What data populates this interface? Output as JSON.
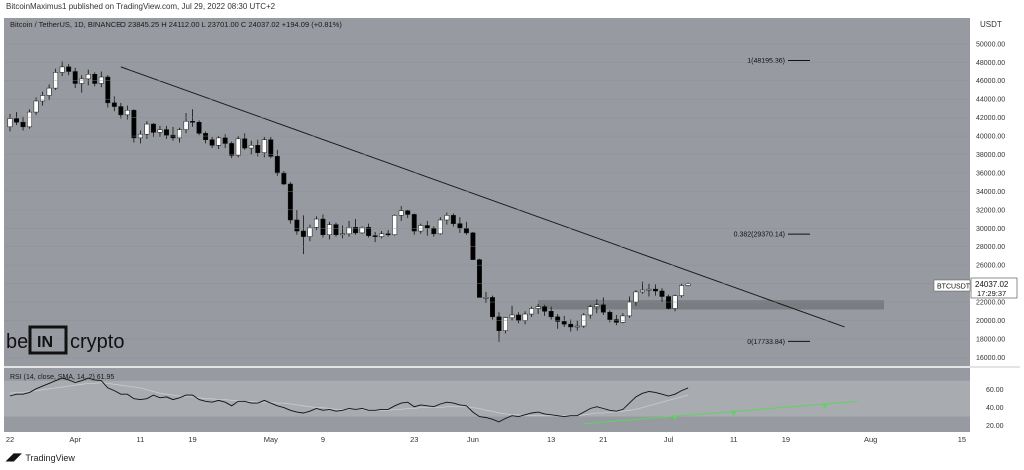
{
  "header": {
    "publish_line": "BitcoinMaximus1 published on TradingView.com, Jul 29, 2022 08:30 UTC+2"
  },
  "chart_data": {
    "type": "candlestick",
    "title": "Bitcoin / TetherUS, 1D, BINANCE",
    "ohlc_line": "O 23845.25  H 24112.00  L 23701.00  C 24037.02  +194.09 (+0.81%)",
    "currency": "USDT",
    "price_label": "BTCUSDT",
    "last_price": "24037.02",
    "countdown": "17:29:37",
    "y_ticks": [
      "50000.00",
      "48000.00",
      "46000.00",
      "44000.00",
      "42000.00",
      "40000.00",
      "38000.00",
      "36000.00",
      "34000.00",
      "32000.00",
      "30000.00",
      "28000.00",
      "26000.00",
      "24000.00",
      "22000.00",
      "20000.00",
      "18000.00",
      "16000.00"
    ],
    "x_ticks": [
      {
        "label": "22",
        "i": 0
      },
      {
        "label": "Apr",
        "i": 10
      },
      {
        "label": "11",
        "i": 20
      },
      {
        "label": "19",
        "i": 28
      },
      {
        "label": "May",
        "i": 40
      },
      {
        "label": "9",
        "i": 48
      },
      {
        "label": "23",
        "i": 62
      },
      {
        "label": "Jun",
        "i": 71
      },
      {
        "label": "13",
        "i": 83
      },
      {
        "label": "21",
        "i": 91
      },
      {
        "label": "Jul",
        "i": 101
      },
      {
        "label": "11",
        "i": 111
      },
      {
        "label": "19",
        "i": 119
      },
      {
        "label": "Aug",
        "i": 132
      },
      {
        "label": "15",
        "i": 146
      }
    ],
    "ylim": [
      15500,
      51500
    ],
    "candles": [
      [
        41000,
        42400,
        40500,
        41900
      ],
      [
        41900,
        42600,
        41200,
        41500
      ],
      [
        41500,
        42100,
        40600,
        41000
      ],
      [
        41000,
        42900,
        40800,
        42600
      ],
      [
        42600,
        44200,
        42300,
        43800
      ],
      [
        43800,
        44800,
        43300,
        44400
      ],
      [
        44400,
        45600,
        43900,
        45200
      ],
      [
        45200,
        47300,
        45000,
        46900
      ],
      [
        46900,
        48100,
        46500,
        47500
      ],
      [
        47500,
        47800,
        46600,
        47000
      ],
      [
        47000,
        47400,
        45200,
        45700
      ],
      [
        45700,
        46600,
        44700,
        46200
      ],
      [
        46200,
        47200,
        45500,
        46700
      ],
      [
        46700,
        46900,
        45400,
        45700
      ],
      [
        45700,
        47000,
        45300,
        46400
      ],
      [
        46400,
        46600,
        43100,
        43600
      ],
      [
        43600,
        44300,
        42700,
        43200
      ],
      [
        43200,
        43600,
        41900,
        42300
      ],
      [
        42300,
        43300,
        41800,
        42800
      ],
      [
        42800,
        42900,
        39300,
        39800
      ],
      [
        39800,
        40600,
        39200,
        40200
      ],
      [
        40200,
        41600,
        39700,
        41300
      ],
      [
        41300,
        41400,
        39900,
        40400
      ],
      [
        40400,
        41100,
        39900,
        40700
      ],
      [
        40700,
        41100,
        39700,
        40100
      ],
      [
        40100,
        41000,
        39500,
        39800
      ],
      [
        39800,
        40900,
        39300,
        40700
      ],
      [
        40700,
        42500,
        40300,
        41600
      ],
      [
        41600,
        42900,
        41000,
        41500
      ],
      [
        41500,
        41700,
        40100,
        40300
      ],
      [
        40300,
        40500,
        39200,
        39600
      ],
      [
        39600,
        39900,
        38700,
        39000
      ],
      [
        39000,
        40000,
        38600,
        39800
      ],
      [
        39800,
        40200,
        38700,
        39200
      ],
      [
        39200,
        39400,
        37600,
        37900
      ],
      [
        37900,
        40000,
        37700,
        39700
      ],
      [
        39700,
        40300,
        38500,
        38700
      ],
      [
        38700,
        39500,
        38000,
        39000
      ],
      [
        39000,
        39600,
        37800,
        38200
      ],
      [
        38200,
        39900,
        37700,
        39600
      ],
      [
        39600,
        39900,
        37600,
        37800
      ],
      [
        37800,
        38500,
        35700,
        36000
      ],
      [
        36000,
        36200,
        34700,
        34800
      ],
      [
        34800,
        35000,
        30500,
        30900
      ],
      [
        30900,
        32000,
        29300,
        29700
      ],
      [
        29700,
        31400,
        27200,
        29100
      ],
      [
        29100,
        30400,
        28600,
        30100
      ],
      [
        30100,
        31300,
        29800,
        31000
      ],
      [
        31000,
        31500,
        29000,
        29300
      ],
      [
        29300,
        30700,
        28800,
        30400
      ],
      [
        30400,
        30600,
        29100,
        29300
      ],
      [
        29300,
        30300,
        28900,
        29400
      ],
      [
        29400,
        30800,
        29100,
        30100
      ],
      [
        30100,
        31000,
        29300,
        29500
      ],
      [
        29500,
        30200,
        29400,
        30100
      ],
      [
        30100,
        30500,
        29000,
        29200
      ],
      [
        29200,
        29600,
        28500,
        29100
      ],
      [
        29100,
        29700,
        28900,
        29400
      ],
      [
        29400,
        29800,
        29100,
        29300
      ],
      [
        29300,
        31500,
        29200,
        31400
      ],
      [
        31400,
        32400,
        30800,
        31900
      ],
      [
        31900,
        32000,
        31100,
        31500
      ],
      [
        31500,
        31600,
        29300,
        29700
      ],
      [
        29700,
        30500,
        29400,
        30300
      ],
      [
        30300,
        30800,
        29200,
        30000
      ],
      [
        30000,
        30200,
        29100,
        29400
      ],
      [
        29400,
        31200,
        29300,
        30900
      ],
      [
        30900,
        31700,
        30400,
        31400
      ],
      [
        31400,
        31600,
        30200,
        30500
      ],
      [
        30500,
        31200,
        29500,
        30000
      ],
      [
        30000,
        30700,
        29300,
        29500
      ],
      [
        29500,
        29600,
        26600,
        26600
      ],
      [
        26600,
        26700,
        22700,
        22500
      ],
      [
        22500,
        23100,
        21900,
        22500
      ],
      [
        22500,
        22700,
        20100,
        20400
      ],
      [
        20400,
        20900,
        17700,
        18900
      ],
      [
        18900,
        20200,
        18600,
        20300
      ],
      [
        20300,
        21600,
        20000,
        20600
      ],
      [
        20600,
        20900,
        19700,
        20000
      ],
      [
        20000,
        21000,
        19600,
        20700
      ],
      [
        20700,
        21500,
        20400,
        21300
      ],
      [
        21300,
        21800,
        20700,
        21500
      ],
      [
        21500,
        21700,
        20500,
        21000
      ],
      [
        21000,
        21500,
        20100,
        20400
      ],
      [
        20400,
        20700,
        19100,
        19900
      ],
      [
        19900,
        20500,
        19300,
        19600
      ],
      [
        19600,
        20100,
        18800,
        19300
      ],
      [
        19300,
        20000,
        18900,
        19400
      ],
      [
        19400,
        20800,
        19200,
        20600
      ],
      [
        20600,
        21700,
        20200,
        21500
      ],
      [
        21500,
        22300,
        20800,
        21700
      ],
      [
        21700,
        22500,
        20600,
        20900
      ],
      [
        20900,
        21100,
        19800,
        20100
      ],
      [
        20100,
        20600,
        19500,
        19800
      ],
      [
        19800,
        20800,
        19700,
        20500
      ],
      [
        20500,
        22600,
        20300,
        22000
      ],
      [
        22000,
        23300,
        21600,
        23100
      ],
      [
        23100,
        24200,
        22900,
        23300
      ],
      [
        23300,
        24000,
        22600,
        23400
      ],
      [
        23400,
        23900,
        22700,
        23200
      ],
      [
        23200,
        23500,
        22000,
        22600
      ],
      [
        22600,
        22800,
        21200,
        21300
      ],
      [
        21300,
        22800,
        21000,
        22700
      ],
      [
        22700,
        24000,
        22500,
        23800
      ],
      [
        23800,
        24100,
        23700,
        24000
      ]
    ],
    "fib_levels": [
      {
        "label": "1(48195.36)",
        "price": 48195.36
      },
      {
        "label": "0.382(29370.14)",
        "price": 29370.14
      },
      {
        "label": "0(17733.84)",
        "price": 17733.84
      }
    ],
    "support_zone": [
      21200,
      22200
    ],
    "rsi": {
      "label": "RSI (14, close, SMA, 14, 2)  61.95",
      "y_ticks": [
        "60.00",
        "40.00",
        "20.00"
      ],
      "ylim": [
        15,
        82
      ],
      "values": [
        53,
        55,
        55,
        57,
        61,
        64,
        67,
        70,
        73,
        71,
        68,
        70,
        73,
        71,
        70,
        62,
        59,
        55,
        55,
        50,
        49,
        50,
        54,
        51,
        52,
        49,
        51,
        54,
        54,
        49,
        47,
        46,
        48,
        46,
        42,
        47,
        47,
        45,
        45,
        48,
        45,
        42,
        40,
        37,
        35,
        34,
        36,
        39,
        37,
        38,
        36,
        37,
        39,
        38,
        39,
        37,
        37,
        38,
        38,
        42,
        45,
        46,
        41,
        43,
        42,
        41,
        44,
        46,
        45,
        43,
        42,
        35,
        30,
        29,
        27,
        24,
        28,
        31,
        30,
        32,
        34,
        35,
        33,
        32,
        31,
        30,
        31,
        31,
        35,
        39,
        41,
        39,
        37,
        36,
        38,
        45,
        52,
        56,
        58,
        57,
        55,
        53,
        55,
        59,
        62
      ],
      "sma_values": [
        56,
        57,
        57,
        58,
        59,
        60,
        61,
        62,
        63,
        64,
        65,
        66,
        67,
        67,
        68,
        67,
        66,
        65,
        64,
        63,
        62,
        60,
        58,
        56,
        55,
        54,
        53,
        52,
        52,
        51,
        50,
        50,
        49,
        49,
        48,
        48,
        47,
        47,
        46,
        46,
        46,
        45,
        45,
        44,
        43,
        42,
        41,
        40,
        40,
        39,
        38,
        38,
        38,
        38,
        38,
        37,
        37,
        37,
        37,
        38,
        38,
        39,
        39,
        40,
        40,
        40,
        40,
        41,
        41,
        41,
        41,
        40,
        39,
        37,
        36,
        34,
        33,
        32,
        32,
        31,
        31,
        31,
        31,
        31,
        31,
        31,
        31,
        31,
        32,
        33,
        34,
        34,
        35,
        35,
        36,
        37,
        38,
        40,
        42,
        44,
        46,
        48,
        50,
        52,
        54
      ]
    }
  }
}
